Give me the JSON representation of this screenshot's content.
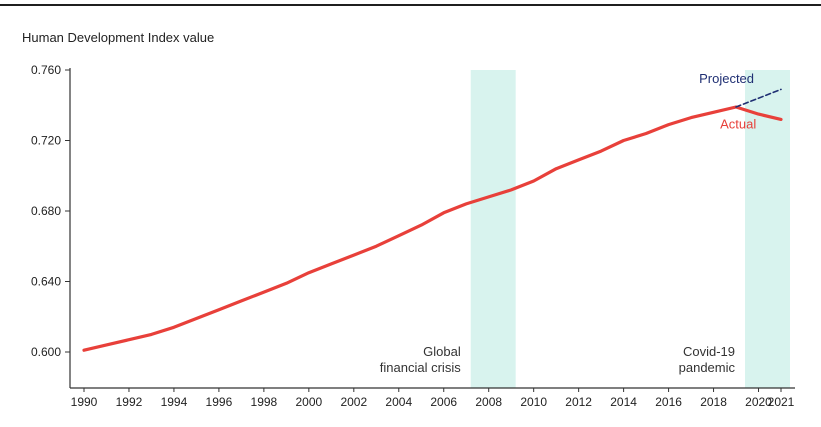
{
  "chart_data": {
    "type": "line",
    "title": "",
    "xlabel": "",
    "ylabel": "Human Development Index value",
    "ylim": [
      0.6,
      0.76
    ],
    "xlim": [
      1990,
      2021
    ],
    "yticks": [
      "0.600",
      "0.640",
      "0.680",
      "0.720",
      "0.760"
    ],
    "xticks": [
      "1990",
      "1992",
      "1994",
      "1996",
      "1998",
      "2000",
      "2002",
      "2004",
      "2006",
      "2008",
      "2010",
      "2012",
      "2014",
      "2016",
      "2018",
      "2020",
      "2021"
    ],
    "grid": false,
    "colors": {
      "actual": "#e8403a",
      "projected": "#1f2f73",
      "shade": "#d8f3ee",
      "axis": "#333333"
    },
    "series": [
      {
        "name": "Actual",
        "style": "solid",
        "x": [
          1990,
          1991,
          1992,
          1993,
          1994,
          1995,
          1996,
          1997,
          1998,
          1999,
          2000,
          2001,
          2002,
          2003,
          2004,
          2005,
          2006,
          2007,
          2008,
          2009,
          2010,
          2011,
          2012,
          2013,
          2014,
          2015,
          2016,
          2017,
          2018,
          2019,
          2020,
          2021
        ],
        "values": [
          0.601,
          0.604,
          0.607,
          0.61,
          0.614,
          0.619,
          0.624,
          0.629,
          0.634,
          0.639,
          0.645,
          0.65,
          0.655,
          0.66,
          0.666,
          0.672,
          0.679,
          0.684,
          0.688,
          0.692,
          0.697,
          0.704,
          0.709,
          0.714,
          0.72,
          0.724,
          0.729,
          0.733,
          0.736,
          0.739,
          0.735,
          0.732
        ]
      },
      {
        "name": "Projected",
        "style": "dashed",
        "x": [
          2019,
          2020,
          2021
        ],
        "values": [
          0.739,
          0.744,
          0.749
        ]
      }
    ],
    "shaded_periods": [
      {
        "start": 2007.2,
        "end": 2009.2,
        "label_lines": [
          "Global",
          "financial crisis"
        ]
      },
      {
        "start": 2019.4,
        "end": 2021.4,
        "label_lines": [
          "Covid-19",
          "pandemic"
        ]
      }
    ],
    "series_labels": {
      "projected": "Projected",
      "actual": "Actual"
    }
  }
}
